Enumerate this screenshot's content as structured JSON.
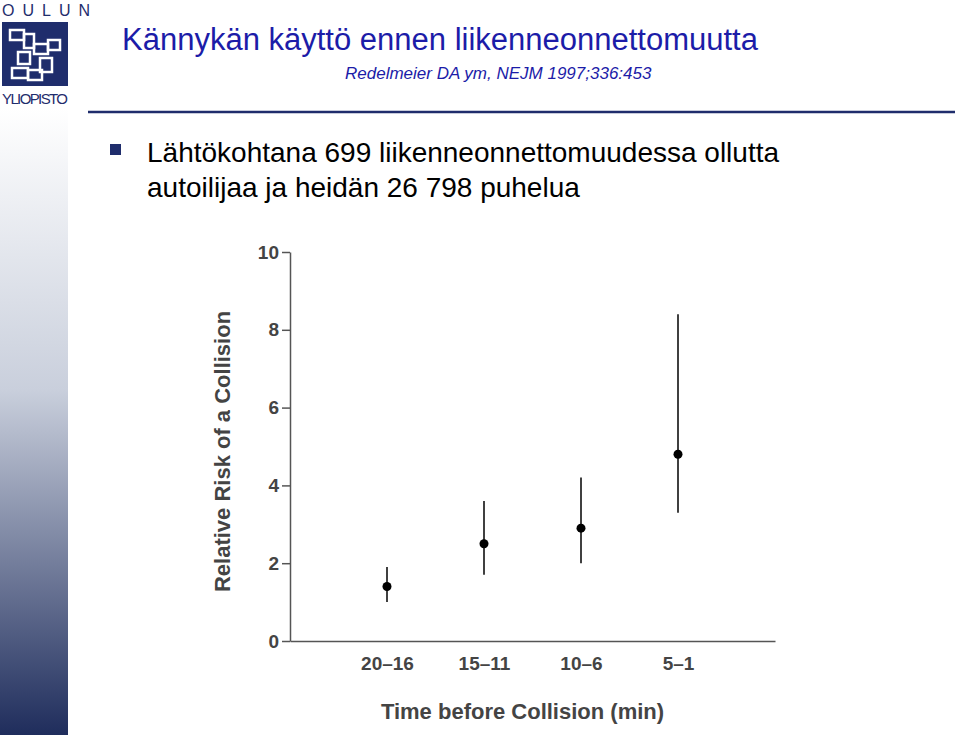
{
  "slide": {
    "logo_top": "OULUN",
    "logo_bottom": "YLIOPISTO",
    "title": "Kännykän käyttö ennen liikenneonnettomuutta",
    "subtitle": "Redelmeier DA ym, NEJM 1997;336:453",
    "bullet_lines": [
      "Lähtökohtana 699 liikenneonnettomuudessa ollutta",
      "autoilijaa ja heidän 26 798 puhelua"
    ]
  },
  "chart_data": {
    "type": "scatter",
    "marker": "circle",
    "color": "#000000",
    "x_label": "Time before Collision (min)",
    "y_label": "Relative Risk of a Collision",
    "categories": [
      "20–16",
      "15–11",
      "10–6",
      "5–1"
    ],
    "values": [
      1.4,
      2.5,
      2.9,
      4.8
    ],
    "ci_low": [
      1.0,
      1.7,
      2.0,
      3.3
    ],
    "ci_high": [
      1.9,
      3.6,
      4.2,
      8.4
    ],
    "ylim": [
      0,
      10
    ],
    "yticks": [
      0,
      2,
      4,
      6,
      8,
      10
    ],
    "grid": false
  }
}
